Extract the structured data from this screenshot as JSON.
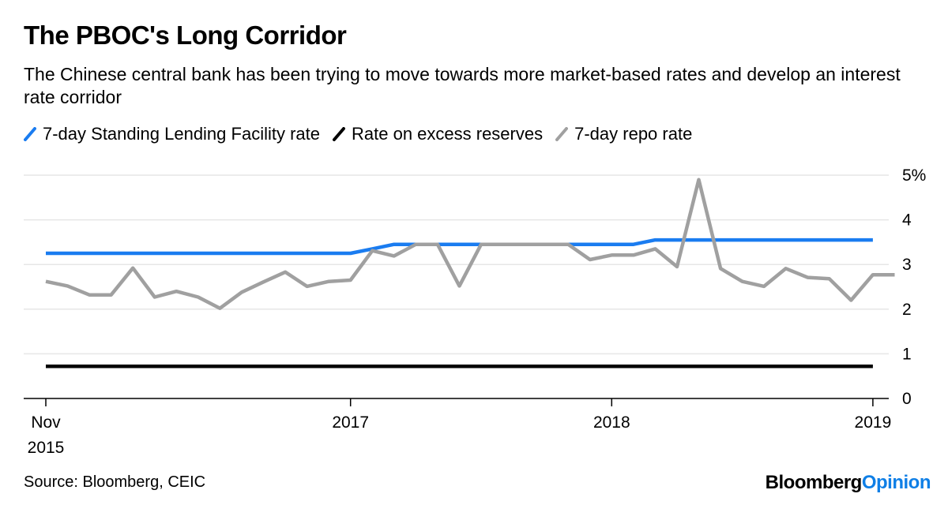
{
  "header": {
    "title": "The PBOC's Long Corridor",
    "subtitle": "The Chinese central bank has been trying to move towards more market-based rates and develop an interest rate corridor"
  },
  "footer": {
    "source": "Source: Bloomberg, CEIC",
    "brand_main": "Bloomberg",
    "brand_accent": "Opinion"
  },
  "colors": {
    "slf": "#1a7cf0",
    "excess": "#000000",
    "repo": "#a0a0a0",
    "grid": "#e6e6e6",
    "axis": "#000000",
    "brand_accent": "#0f7fe6"
  },
  "chart_data": {
    "type": "line",
    "title": "The PBOC's Long Corridor",
    "ylim": [
      0,
      5
    ],
    "y_ticks": [
      {
        "value": 5,
        "label": "5%"
      },
      {
        "value": 4,
        "label": "4"
      },
      {
        "value": 3,
        "label": "3"
      },
      {
        "value": 2,
        "label": "2"
      },
      {
        "value": 1,
        "label": "1"
      },
      {
        "value": 0,
        "label": "0"
      }
    ],
    "x_ticks": [
      {
        "date": "2015-11",
        "label_line1": "Nov",
        "label_line2": "2015"
      },
      {
        "date": "2017-01",
        "label_line1": "2017",
        "label_line2": ""
      },
      {
        "date": "2018-01",
        "label_line1": "2018",
        "label_line2": ""
      },
      {
        "date": "2019-01",
        "label_line1": "2019",
        "label_line2": ""
      }
    ],
    "x_range": [
      "2015-11",
      "2019-02"
    ],
    "grid": true,
    "legend_position": "top-left",
    "series": [
      {
        "name": "7-day Standing Lending Facility rate",
        "color": "#1a7cf0",
        "x": [
          "2015-11",
          "2017-01",
          "2017-02",
          "2017-03",
          "2018-02",
          "2018-03",
          "2019-01"
        ],
        "y": [
          3.25,
          3.25,
          3.35,
          3.45,
          3.45,
          3.55,
          3.55
        ]
      },
      {
        "name": "Rate on excess reserves",
        "color": "#000000",
        "x": [
          "2015-11",
          "2019-01"
        ],
        "y": [
          0.72,
          0.72
        ]
      },
      {
        "name": "7-day repo rate",
        "color": "#a0a0a0",
        "x": [
          "2015-11",
          "2015-12",
          "2016-01",
          "2016-02",
          "2016-03",
          "2016-04",
          "2016-05",
          "2016-06",
          "2016-07",
          "2016-08",
          "2016-09",
          "2016-10",
          "2016-11",
          "2016-12",
          "2017-01",
          "2017-02",
          "2017-03",
          "2017-04",
          "2017-05",
          "2017-06",
          "2017-07",
          "2017-08",
          "2017-09",
          "2017-10",
          "2017-11",
          "2017-12",
          "2018-01",
          "2018-02",
          "2018-03",
          "2018-04",
          "2018-05",
          "2018-06",
          "2018-07",
          "2018-08",
          "2018-09",
          "2018-10",
          "2018-11",
          "2018-12",
          "2019-01",
          "2019-02"
        ],
        "y": [
          2.62,
          2.52,
          2.32,
          2.32,
          2.92,
          2.27,
          2.4,
          2.27,
          2.02,
          2.38,
          2.61,
          2.83,
          2.51,
          2.62,
          2.65,
          3.31,
          3.19,
          3.45,
          3.45,
          2.52,
          3.45,
          3.45,
          3.45,
          3.45,
          3.45,
          3.11,
          3.21,
          3.21,
          3.35,
          2.95,
          4.9,
          2.91,
          2.62,
          2.51,
          2.91,
          2.71,
          2.68,
          2.2,
          2.77,
          2.77
        ]
      }
    ]
  }
}
